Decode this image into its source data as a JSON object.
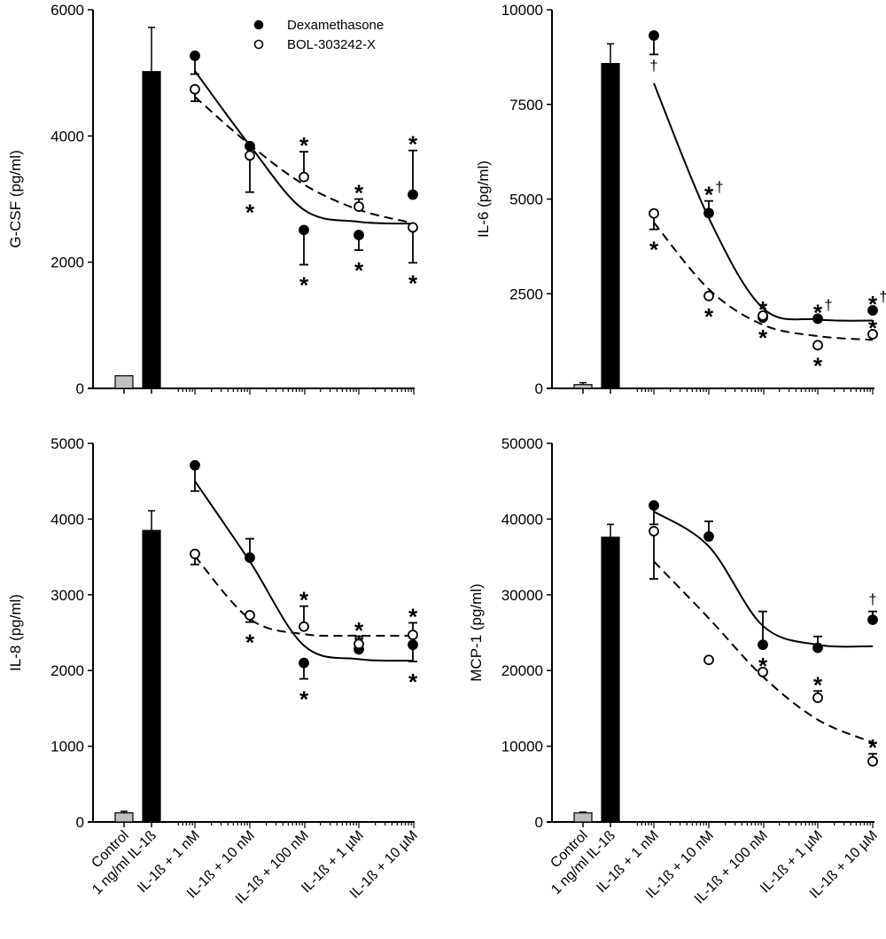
{
  "chart_data": [
    {
      "type": "bar+scatter",
      "panel": "top-left",
      "ylabel": "G-CSF (pg/ml)",
      "ylim": [
        0,
        6000
      ],
      "yticks": [
        0,
        2000,
        4000,
        6000
      ],
      "categories": [
        "Control",
        "1 ng/ml IL-1ß",
        "IL-1ß + 1 nM",
        "IL-1ß + 10 nM",
        "IL-1ß + 100 nM",
        "IL-1ß + 1 µM",
        "IL-1ß + 10 µM"
      ],
      "bars": [
        {
          "category": "Control",
          "value": 200,
          "error": 0,
          "color": "#bfbfbf"
        },
        {
          "category": "1 ng/ml IL-1ß",
          "value": 5020,
          "error": 700,
          "color": "#000000"
        }
      ],
      "series": [
        {
          "name": "Dexamethasone",
          "marker": "filled-circle",
          "line": "solid",
          "values": [
            5270,
            3840,
            2510,
            2430,
            3070
          ],
          "errors": [
            -290,
            0,
            -550,
            -240,
            700
          ],
          "annotations": [
            "",
            "",
            "*",
            "*",
            "*"
          ],
          "fit": [
            5030,
            3850,
            2830,
            2640,
            2610
          ]
        },
        {
          "name": "BOL-303242-X",
          "marker": "open-circle",
          "line": "dashed",
          "values": [
            4740,
            3690,
            3350,
            2880,
            2550
          ],
          "errors": [
            -190,
            -580,
            400,
            120,
            -560
          ],
          "annotations": [
            "",
            "*",
            "*",
            "*",
            "*"
          ],
          "fit": [
            4620,
            3860,
            3230,
            2830,
            2620
          ]
        }
      ],
      "legend": {
        "position": "top-right",
        "entries": [
          "Dexamethasone",
          "BOL-303242-X"
        ]
      }
    },
    {
      "type": "bar+scatter",
      "panel": "top-right",
      "ylabel": "IL-6 (pg/ml)",
      "ylim": [
        0,
        10000
      ],
      "yticks": [
        0,
        2500,
        5000,
        7500,
        10000
      ],
      "categories": [
        "Control",
        "1 ng/ml IL-1ß",
        "IL-1ß + 1 nM",
        "IL-1ß + 10 nM",
        "IL-1ß + 100 nM",
        "IL-1ß + 1 µM",
        "IL-1ß + 10 µM"
      ],
      "bars": [
        {
          "category": "Control",
          "value": 100,
          "error": 50,
          "color": "#bfbfbf"
        },
        {
          "category": "1 ng/ml IL-1ß",
          "value": 8580,
          "error": 520,
          "color": "#000000"
        }
      ],
      "series": [
        {
          "name": "Dexamethasone",
          "marker": "filled-circle",
          "line": "solid",
          "values": [
            9320,
            4630,
            1870,
            1840,
            2060
          ],
          "errors": [
            -500,
            320,
            0,
            0,
            0
          ],
          "annotations": [
            "†",
            "*†",
            "*",
            "*†",
            "*†"
          ],
          "fit": [
            8060,
            4500,
            2120,
            1820,
            1790
          ]
        },
        {
          "name": "BOL-303242-X",
          "marker": "open-circle",
          "line": "dashed",
          "values": [
            4620,
            2440,
            1920,
            1140,
            1430
          ],
          "errors": [
            -420,
            0,
            0,
            0,
            0
          ],
          "annotations": [
            "*",
            "*",
            "*",
            "*",
            "*"
          ],
          "fit": [
            4380,
            2620,
            1680,
            1380,
            1280
          ]
        }
      ]
    },
    {
      "type": "bar+scatter",
      "panel": "bottom-left",
      "ylabel": "IL-8 (pg/ml)",
      "ylim": [
        0,
        5000
      ],
      "yticks": [
        0,
        1000,
        2000,
        3000,
        4000,
        5000
      ],
      "categories": [
        "Control",
        "1 ng/ml IL-1ß",
        "IL-1ß + 1 nM",
        "IL-1ß + 10 nM",
        "IL-1ß + 100 nM",
        "IL-1ß + 1 µM",
        "IL-1ß + 10 µM"
      ],
      "bars": [
        {
          "category": "Control",
          "value": 120,
          "error": 20,
          "color": "#bfbfbf"
        },
        {
          "category": "1 ng/ml IL-1ß",
          "value": 3850,
          "error": 260,
          "color": "#000000"
        }
      ],
      "series": [
        {
          "name": "Dexamethasone",
          "marker": "filled-circle",
          "line": "solid",
          "values": [
            4710,
            3490,
            2100,
            2280,
            2340
          ],
          "errors": [
            -340,
            250,
            -210,
            0,
            -220
          ],
          "annotations": [
            "",
            "",
            "*",
            "*",
            "*"
          ],
          "fit": [
            4500,
            3440,
            2330,
            2150,
            2130
          ]
        },
        {
          "name": "BOL-303242-X",
          "marker": "open-circle",
          "line": "dashed",
          "values": [
            3540,
            2730,
            2580,
            2350,
            2470
          ],
          "errors": [
            -140,
            -90,
            270,
            100,
            160
          ],
          "annotations": [
            "",
            "*",
            "*",
            "*",
            "*"
          ],
          "fit": [
            3510,
            2680,
            2480,
            2460,
            2460
          ]
        }
      ]
    },
    {
      "type": "bar+scatter",
      "panel": "bottom-right",
      "ylabel": "MCP-1 (pg/ml)",
      "ylim": [
        0,
        50000
      ],
      "yticks": [
        0,
        10000,
        20000,
        30000,
        40000,
        50000
      ],
      "categories": [
        "Control",
        "1 ng/ml IL-1ß",
        "IL-1ß + 1 nM",
        "IL-1ß + 10 nM",
        "IL-1ß + 100 nM",
        "IL-1ß + 1 µM",
        "IL-1ß + 10 µM"
      ],
      "bars": [
        {
          "category": "Control",
          "value": 1200,
          "error": 100,
          "color": "#bfbfbf"
        },
        {
          "category": "1 ng/ml IL-1ß",
          "value": 37600,
          "error": 1700,
          "color": "#000000"
        }
      ],
      "series": [
        {
          "name": "Dexamethasone",
          "marker": "filled-circle",
          "line": "solid",
          "values": [
            41800,
            37700,
            23400,
            23000,
            26700
          ],
          "errors": [
            -2500,
            2000,
            4400,
            1500,
            1100
          ],
          "annotations": [
            "",
            "",
            "",
            "",
            "†"
          ],
          "fit": [
            41000,
            36400,
            25900,
            23400,
            23200
          ]
        },
        {
          "name": "BOL-303242-X",
          "marker": "open-circle",
          "line": "dashed",
          "values": [
            38400,
            21400,
            19800,
            16400,
            8000
          ],
          "errors": [
            -6300,
            0,
            0,
            900,
            1000
          ],
          "annotations": [
            "",
            "",
            "*",
            "*",
            "*"
          ],
          "fit": [
            34400,
            26900,
            19200,
            13500,
            10500
          ]
        }
      ]
    }
  ]
}
